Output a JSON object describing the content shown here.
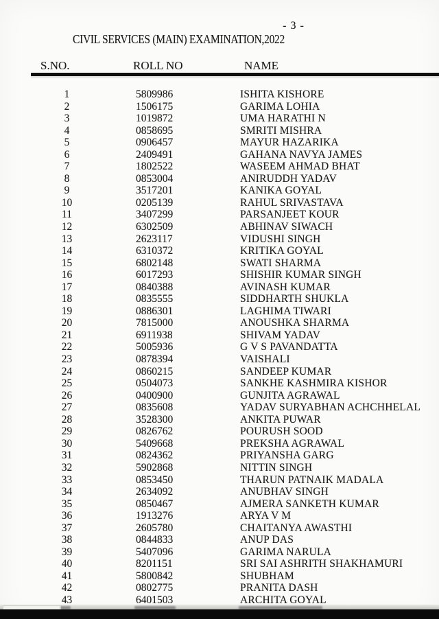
{
  "page": {
    "page_number": "- 3 -",
    "title": "CIVIL SERVICES (MAIN) EXAMINATION,2022"
  },
  "table": {
    "headers": {
      "sno": "S.NO.",
      "roll": "ROLL NO",
      "name": "NAME"
    },
    "rows": [
      {
        "sno": "1",
        "roll": "5809986",
        "name": "ISHITA KISHORE"
      },
      {
        "sno": "2",
        "roll": "1506175",
        "name": "GARIMA LOHIA"
      },
      {
        "sno": "3",
        "roll": "1019872",
        "name": "UMA HARATHI N"
      },
      {
        "sno": "4",
        "roll": "0858695",
        "name": "SMRITI MISHRA"
      },
      {
        "sno": "5",
        "roll": "0906457",
        "name": "MAYUR HAZARIKA"
      },
      {
        "sno": "6",
        "roll": "2409491",
        "name": "GAHANA NAVYA JAMES"
      },
      {
        "sno": "7",
        "roll": "1802522",
        "name": "WASEEM AHMAD BHAT"
      },
      {
        "sno": "8",
        "roll": "0853004",
        "name": "ANIRUDDH YADAV"
      },
      {
        "sno": "9",
        "roll": "3517201",
        "name": "KANIKA GOYAL"
      },
      {
        "sno": "10",
        "roll": "0205139",
        "name": "RAHUL SRIVASTAVA"
      },
      {
        "sno": "11",
        "roll": "3407299",
        "name": "PARSANJEET KOUR"
      },
      {
        "sno": "12",
        "roll": "6302509",
        "name": "ABHINAV SIWACH"
      },
      {
        "sno": "13",
        "roll": "2623117",
        "name": "VIDUSHI SINGH"
      },
      {
        "sno": "14",
        "roll": "6310372",
        "name": "KRITIKA GOYAL"
      },
      {
        "sno": "15",
        "roll": "6802148",
        "name": "SWATI SHARMA"
      },
      {
        "sno": "16",
        "roll": "6017293",
        "name": "SHISHIR KUMAR SINGH"
      },
      {
        "sno": "17",
        "roll": "0840388",
        "name": "AVINASH KUMAR"
      },
      {
        "sno": "18",
        "roll": "0835555",
        "name": "SIDDHARTH SHUKLA"
      },
      {
        "sno": "19",
        "roll": "0886301",
        "name": "LAGHIMA TIWARI"
      },
      {
        "sno": "20",
        "roll": "7815000",
        "name": "ANOUSHKA SHARMA"
      },
      {
        "sno": "21",
        "roll": "6911938",
        "name": "SHIVAM YADAV"
      },
      {
        "sno": "22",
        "roll": "5005936",
        "name": "G V S PAVANDATTA"
      },
      {
        "sno": "23",
        "roll": "0878394",
        "name": "VAISHALI"
      },
      {
        "sno": "24",
        "roll": "0860215",
        "name": "SANDEEP KUMAR"
      },
      {
        "sno": "25",
        "roll": "0504073",
        "name": "SANKHE KASHMIRA KISHOR"
      },
      {
        "sno": "26",
        "roll": "0400900",
        "name": "GUNJITA AGRAWAL"
      },
      {
        "sno": "27",
        "roll": "0835608",
        "name": "YADAV SURYABHAN ACHCHHELAL"
      },
      {
        "sno": "28",
        "roll": "3528300",
        "name": "ANKITA PUWAR"
      },
      {
        "sno": "29",
        "roll": "0826762",
        "name": "POURUSH SOOD"
      },
      {
        "sno": "30",
        "roll": "5409668",
        "name": "PREKSHA AGRAWAL"
      },
      {
        "sno": "31",
        "roll": "0824362",
        "name": "PRIYANSHA GARG"
      },
      {
        "sno": "32",
        "roll": "5902868",
        "name": "NITTIN SINGH"
      },
      {
        "sno": "33",
        "roll": "0853450",
        "name": "THARUN PATNAIK MADALA"
      },
      {
        "sno": "34",
        "roll": "2634092",
        "name": "ANUBHAV SINGH"
      },
      {
        "sno": "35",
        "roll": "0850467",
        "name": "AJMERA SANKETH KUMAR"
      },
      {
        "sno": "36",
        "roll": "1913276",
        "name": "ARYA V M"
      },
      {
        "sno": "37",
        "roll": "2605780",
        "name": "CHAITANYA AWASTHI"
      },
      {
        "sno": "38",
        "roll": "0844833",
        "name": "ANUP DAS"
      },
      {
        "sno": "39",
        "roll": "5407096",
        "name": "GARIMA NARULA"
      },
      {
        "sno": "40",
        "roll": "8201151",
        "name": "SRI SAI ASHRITH SHAKHAMURI"
      },
      {
        "sno": "41",
        "roll": "5800842",
        "name": "SHUBHAM"
      },
      {
        "sno": "42",
        "roll": "0802775",
        "name": "PRANITA DASH"
      },
      {
        "sno": "43",
        "roll": "6401503",
        "name": "ARCHITA GOYAL"
      }
    ]
  },
  "colors": {
    "ink": "#1c1c1c",
    "paper": "#fbfbfa",
    "bar": "#0a0a0a"
  }
}
